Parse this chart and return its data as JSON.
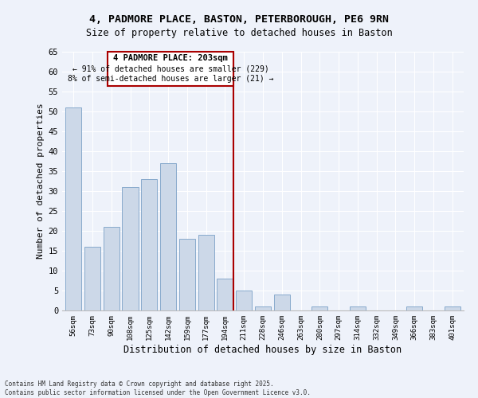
{
  "title_line1": "4, PADMORE PLACE, BASTON, PETERBOROUGH, PE6 9RN",
  "title_line2": "Size of property relative to detached houses in Baston",
  "xlabel": "Distribution of detached houses by size in Baston",
  "ylabel": "Number of detached properties",
  "categories": [
    "56sqm",
    "73sqm",
    "90sqm",
    "108sqm",
    "125sqm",
    "142sqm",
    "159sqm",
    "177sqm",
    "194sqm",
    "211sqm",
    "228sqm",
    "246sqm",
    "263sqm",
    "280sqm",
    "297sqm",
    "314sqm",
    "332sqm",
    "349sqm",
    "366sqm",
    "383sqm",
    "401sqm"
  ],
  "values": [
    51,
    16,
    21,
    31,
    33,
    37,
    18,
    19,
    8,
    5,
    1,
    4,
    0,
    1,
    0,
    1,
    0,
    0,
    1,
    0,
    1
  ],
  "bar_color": "#ccd8e8",
  "bar_edge_color": "#88aacc",
  "highlight_color": "#aa0000",
  "ylim": [
    0,
    65
  ],
  "yticks": [
    0,
    5,
    10,
    15,
    20,
    25,
    30,
    35,
    40,
    45,
    50,
    55,
    60,
    65
  ],
  "annotation_line1": "4 PADMORE PLACE: 203sqm",
  "annotation_line2": "← 91% of detached houses are smaller (229)",
  "annotation_line3": "8% of semi-detached houses are larger (21) →",
  "footer_line1": "Contains HM Land Registry data © Crown copyright and database right 2025.",
  "footer_line2": "Contains public sector information licensed under the Open Government Licence v3.0.",
  "background_color": "#eef2fa",
  "plot_bg_color": "#eef2fa",
  "highlight_bar_index": 8
}
